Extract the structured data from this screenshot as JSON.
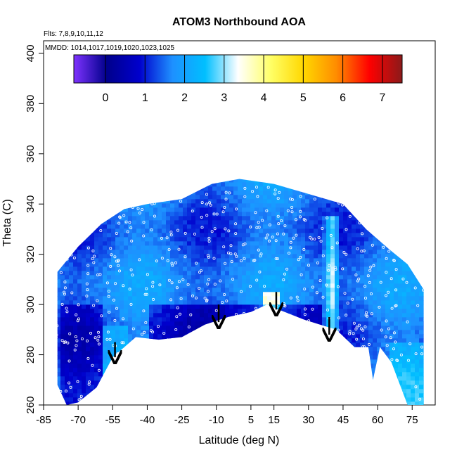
{
  "chart_data": {
    "type": "heatmap",
    "title": "ATOM3 Northbound AOA",
    "xlabel": "Latitude (deg N)",
    "ylabel": "Theta (C)",
    "xlim": [
      -85,
      85
    ],
    "ylim": [
      260,
      405
    ],
    "x_ticks": [
      -85,
      -70,
      -55,
      -40,
      -25,
      -10,
      5,
      15,
      30,
      45,
      60,
      75
    ],
    "y_ticks": [
      260,
      280,
      300,
      320,
      340,
      360,
      380,
      400
    ],
    "annotations": {
      "flights": "Flts: 7,8,9,10,11,12",
      "dates": "MMDD: 1014,1017,1019,1020,1023,1025"
    },
    "colorbar": {
      "range": [
        -0.8,
        7.5
      ],
      "ticks": [
        0,
        1,
        2,
        3,
        4,
        5,
        6,
        7
      ],
      "colors": [
        "#7f33ff",
        "#00008b",
        "#0000cd",
        "#1e90ff",
        "#00bfff",
        "#ffffff",
        "#ffff66",
        "#ffd700",
        "#ff8c00",
        "#ff0000",
        "#8b1a1a"
      ]
    },
    "domain_lower_boundary": [
      {
        "lat": -75,
        "theta": 260
      },
      {
        "lat": -70,
        "theta": 261
      },
      {
        "lat": -62,
        "theta": 267
      },
      {
        "lat": -55,
        "theta": 279
      },
      {
        "lat": -45,
        "theta": 287
      },
      {
        "lat": -35,
        "theta": 286
      },
      {
        "lat": -25,
        "theta": 287
      },
      {
        "lat": -15,
        "theta": 292
      },
      {
        "lat": -5,
        "theta": 295
      },
      {
        "lat": 5,
        "theta": 297
      },
      {
        "lat": 12,
        "theta": 300
      },
      {
        "lat": 17,
        "theta": 298
      },
      {
        "lat": 28,
        "theta": 294
      },
      {
        "lat": 35,
        "theta": 292
      },
      {
        "lat": 42,
        "theta": 290
      },
      {
        "lat": 50,
        "theta": 283
      },
      {
        "lat": 56,
        "theta": 283
      },
      {
        "lat": 58,
        "theta": 270
      },
      {
        "lat": 61,
        "theta": 283
      },
      {
        "lat": 66,
        "theta": 277
      },
      {
        "lat": 73,
        "theta": 260
      }
    ],
    "domain_upper_boundary": [
      {
        "lat": -79,
        "theta": 313
      },
      {
        "lat": -70,
        "theta": 323
      },
      {
        "lat": -60,
        "theta": 332
      },
      {
        "lat": -50,
        "theta": 338
      },
      {
        "lat": -40,
        "theta": 340
      },
      {
        "lat": -25,
        "theta": 342
      },
      {
        "lat": -12,
        "theta": 348
      },
      {
        "lat": 0,
        "theta": 350
      },
      {
        "lat": 15,
        "theta": 348
      },
      {
        "lat": 30,
        "theta": 344
      },
      {
        "lat": 45,
        "theta": 340
      },
      {
        "lat": 55,
        "theta": 330
      },
      {
        "lat": 65,
        "theta": 322
      },
      {
        "lat": 73,
        "theta": 316
      },
      {
        "lat": 80,
        "theta": 306
      }
    ],
    "descent_arrows": [
      {
        "lat": -54,
        "theta_start": 285,
        "theta_end": 279
      },
      {
        "lat": -9,
        "theta_start": 300,
        "theta_end": 293
      },
      {
        "lat": 16,
        "theta_start": 305,
        "theta_end": 298
      },
      {
        "lat": 39,
        "theta_start": 295,
        "theta_end": 288
      }
    ]
  }
}
